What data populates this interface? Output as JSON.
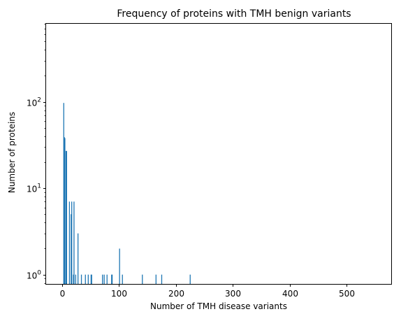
{
  "chart_data": {
    "type": "bar",
    "title": "Frequency of proteins with TMH benign variants",
    "xlabel": "Number of TMH disease variants",
    "ylabel": "Number of proteins",
    "x_scale": "linear",
    "y_scale": "log",
    "xlim": [
      -28,
      578
    ],
    "ylim": [
      0.78,
      800
    ],
    "x_ticks": [
      {
        "value": 0,
        "label": "0"
      },
      {
        "value": 100,
        "label": "100"
      },
      {
        "value": 200,
        "label": "200"
      },
      {
        "value": 300,
        "label": "300"
      },
      {
        "value": 400,
        "label": "400"
      },
      {
        "value": 500,
        "label": "500"
      }
    ],
    "y_ticks": [
      {
        "value": 1,
        "base": "10",
        "exponent": "0"
      },
      {
        "value": 10,
        "base": "10",
        "exponent": "1"
      },
      {
        "value": 100,
        "base": "10",
        "exponent": "2"
      }
    ],
    "bar_color": "#1f77b4",
    "grid": false,
    "legend": "none",
    "bars": [
      {
        "x": 3,
        "value": 97
      },
      {
        "x": 4,
        "value": 39
      },
      {
        "x": 5,
        "value": 38
      },
      {
        "x": 7,
        "value": 27
      },
      {
        "x": 8,
        "value": 27
      },
      {
        "x": 13,
        "value": 7
      },
      {
        "x": 16,
        "value": 5
      },
      {
        "x": 17,
        "value": 7
      },
      {
        "x": 20,
        "value": 1
      },
      {
        "x": 21,
        "value": 7
      },
      {
        "x": 24,
        "value": 1
      },
      {
        "x": 28,
        "value": 3
      },
      {
        "x": 34,
        "value": 1
      },
      {
        "x": 41,
        "value": 1
      },
      {
        "x": 46,
        "value": 1
      },
      {
        "x": 51,
        "value": 1
      },
      {
        "x": 52,
        "value": 1
      },
      {
        "x": 71,
        "value": 1
      },
      {
        "x": 74,
        "value": 1
      },
      {
        "x": 79,
        "value": 1
      },
      {
        "x": 87,
        "value": 1
      },
      {
        "x": 88,
        "value": 1
      },
      {
        "x": 101,
        "value": 2
      },
      {
        "x": 106,
        "value": 1
      },
      {
        "x": 141,
        "value": 1
      },
      {
        "x": 165,
        "value": 1
      },
      {
        "x": 175,
        "value": 1
      },
      {
        "x": 225,
        "value": 1
      }
    ]
  }
}
